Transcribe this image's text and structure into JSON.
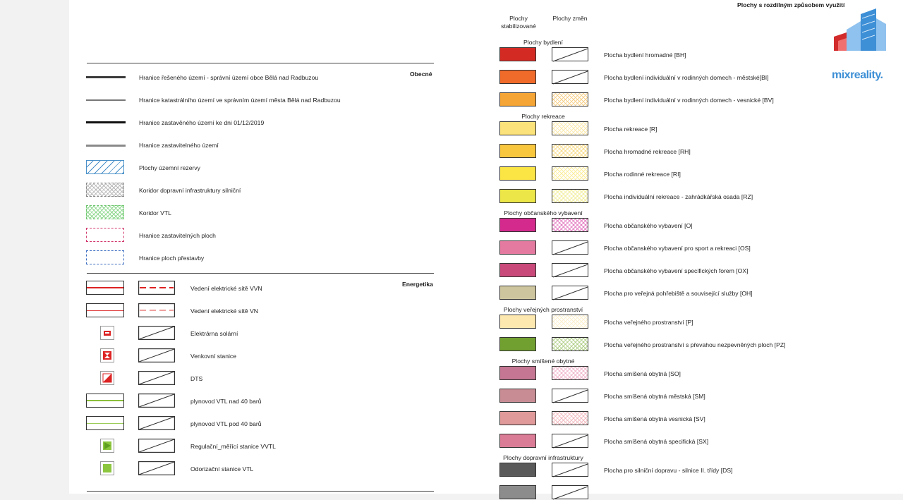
{
  "title": "Plochy s rozdílným způsobem využití",
  "brand": {
    "name": "mixreality.",
    "colors": {
      "blue": "#3d8fd6",
      "light_blue": "#8fc2ee",
      "red": "#d22b2b"
    }
  },
  "columns": {
    "stabilized": "Plochy stabilizované",
    "changes": "Plochy změn"
  },
  "sections": {
    "general": "Obecné",
    "energy": "Energetika"
  },
  "general_items": [
    {
      "label": "Hranice řešeného území - správní území obce Bělá nad Radbuzou",
      "symbol": "thick-dark-line"
    },
    {
      "label": "Hranice katastrálního území ve správním území města Bělá nad Radbuzou",
      "symbol": "thin-grey-line"
    },
    {
      "label": "Hranice zastavěného území ke dni 01/12/2019",
      "symbol": "thick-black-line"
    },
    {
      "label": "Hranice zastavitelného území",
      "symbol": "grey-line"
    },
    {
      "label": "Plochy územní rezervy",
      "symbol": "blue-hatch-box"
    },
    {
      "label": "Koridor dopravní infrastruktury silniční",
      "symbol": "grey-crosshatch-box"
    },
    {
      "label": "Koridor VTL",
      "symbol": "green-crosshatch-box"
    },
    {
      "label": "Hranice zastavitelných ploch",
      "symbol": "pink-dashed-box"
    },
    {
      "label": "Hranice ploch přestavby",
      "symbol": "blue-dashed-box"
    }
  ],
  "energy_items": [
    {
      "label": "Vedení elektrické sítě VVN",
      "symbol": "red-line-thick"
    },
    {
      "label": "Vedení elektrické sítě VN",
      "symbol": "red-line-thin"
    },
    {
      "label": "Elektrárna solární",
      "symbol": "solar-plant-icon"
    },
    {
      "label": "Venkovní stanice",
      "symbol": "outdoor-station-icon"
    },
    {
      "label": "DTS",
      "symbol": "dts-icon"
    },
    {
      "label": "plynovod VTL nad 40 barů",
      "symbol": "green-line-box"
    },
    {
      "label": "plynovod VTL pod 40 barů",
      "symbol": "green-line-box-thin"
    },
    {
      "label": "Regulační_měřící stanice VVTL",
      "symbol": "green-triangle-icon"
    },
    {
      "label": "Odorizační stanice VTL",
      "symbol": "green-square-icon"
    }
  ],
  "groups": [
    {
      "title": "Plochy bydlení",
      "items": [
        {
          "label": "Plocha bydlení hromadné [BH]",
          "color": "#d42a24",
          "change": "slash"
        },
        {
          "label": "Plocha bydlení individuální v rodinných domech - městské[BI]",
          "color": "#f06a2a",
          "change": "slash"
        },
        {
          "label": "Plocha bydlení individuální v rodinných domech - vesnické [BV]",
          "color": "#f5a535",
          "change": "pattern",
          "pattern_color": "#f7d28e"
        }
      ]
    },
    {
      "title": "Plochy rekreace",
      "items": [
        {
          "label": "Plocha rekreace [R]",
          "color": "#fbe27a",
          "change": "pattern",
          "pattern_color": "#fbeab0"
        },
        {
          "label": "Plocha hromadné rekreace [RH]",
          "color": "#f9c73e",
          "change": "pattern",
          "pattern_color": "#f8dc8c"
        },
        {
          "label": "Plocha rodinné rekreace [RI]",
          "color": "#fbe545",
          "change": "pattern",
          "pattern_color": "#fbeea0"
        },
        {
          "label": "Plocha individuální rekreace - zahrádkářská osada [RZ]",
          "color": "#ece648",
          "change": "pattern",
          "pattern_color": "#f2ee9e"
        }
      ]
    },
    {
      "title": "Plochy občanského vybavení",
      "items": [
        {
          "label": "Plocha občanského vybavení [O]",
          "color": "#d42a8e",
          "change": "pattern",
          "pattern_color": "#e47cc2"
        },
        {
          "label": "Plocha občanského vybavení pro sport a rekreaci [OS]",
          "color": "#e47aa0",
          "change": "slash"
        },
        {
          "label": "Plocha občanského vybavení specifických forem [OX]",
          "color": "#c94a7a",
          "change": "slash"
        },
        {
          "label": "Plocha pro veřejná pohřebiště a související služby [OH]",
          "color": "#cdc59e",
          "change": "slash"
        }
      ]
    },
    {
      "title": "Plochy veřejných prostranství",
      "items": [
        {
          "label": "Plocha veřejného prostranství [P]",
          "color": "#fde8b0",
          "change": "pattern",
          "pattern_color": "#fbf0cf"
        },
        {
          "label": "Plocha veřejného  prostranství s převahou nezpevněných ploch [PZ]",
          "color": "#72a030",
          "change": "pattern",
          "pattern_color": "#b2d08a"
        }
      ]
    },
    {
      "title": "Plochy smíšené obytné",
      "items": [
        {
          "label": "Plocha smíšená obytná [SO]",
          "color": "#c47692",
          "change": "pattern",
          "pattern_color": "#f0b6cc"
        },
        {
          "label": "Plocha smíšená obytná městská [SM]",
          "color": "#c88c94",
          "change": "slash"
        },
        {
          "label": "Plocha smíšená obytná vesnická [SV]",
          "color": "#e09a9a",
          "change": "pattern",
          "pattern_color": "#f2bcc2"
        },
        {
          "label": "Plocha smíšená obytná specifická [SX]",
          "color": "#da7c96",
          "change": "slash"
        }
      ]
    },
    {
      "title": "Plochy dopravní infrastruktury",
      "items": [
        {
          "label": "Plocha pro silniční dopravu - silnice II. třídy [DS]",
          "color": "#5a5a5a",
          "change": "slash"
        },
        {
          "label": "",
          "color": "#8c8c8c",
          "change": "slash"
        }
      ]
    }
  ]
}
